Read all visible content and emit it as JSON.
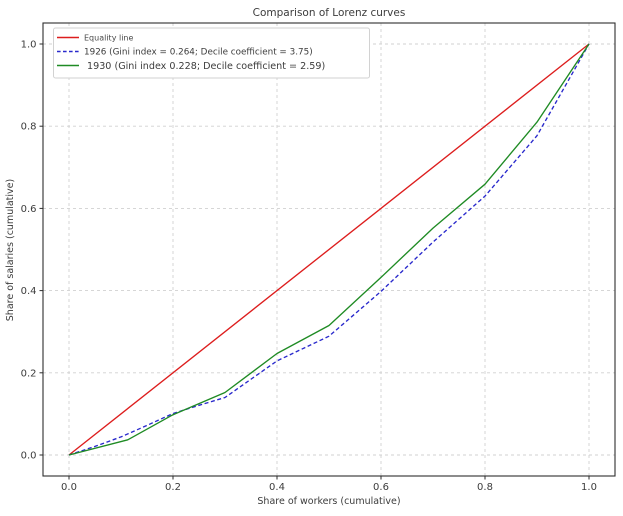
{
  "chart_data": {
    "type": "line",
    "title": "Comparison of Lorenz curves",
    "xlabel": "Share of workers (cumulative)",
    "ylabel": "Share of salaries (cumulative)",
    "xlim": [
      0.0,
      1.0
    ],
    "ylim": [
      0.0,
      1.0
    ],
    "x_ticks": [
      "0.0",
      "0.2",
      "0.4",
      "0.6",
      "0.8",
      "1.0"
    ],
    "y_ticks": [
      "0.0",
      "0.2",
      "0.4",
      "0.6",
      "0.8",
      "1.0"
    ],
    "x_tick_values": [
      0.0,
      0.2,
      0.4,
      0.6,
      0.8,
      1.0
    ],
    "y_tick_values": [
      0.0,
      0.2,
      0.4,
      0.6,
      0.8,
      1.0
    ],
    "grid": {
      "visible": true,
      "style": "dashed",
      "color": "#d0d0d0"
    },
    "legend": {
      "position": "upper-left",
      "background": "#ffffff",
      "border_color": "#d2d2d2"
    },
    "axis_color": "#2e2e2e",
    "text_color": "#3c3c3c",
    "series": [
      {
        "name": "Equality line",
        "color": "#dd1d1d",
        "dash": "solid",
        "points": [
          [
            0,
            0
          ],
          [
            1,
            1
          ]
        ]
      },
      {
        "name": "1926 (Gini index = 0.264; Decile coefficient = 3.75)",
        "year": 1926,
        "gini_index": 0.264,
        "decile_coefficient": 3.75,
        "color": "#2929cc",
        "dash": "dashed",
        "points": [
          [
            0,
            0
          ],
          [
            0.05,
            0.021
          ],
          [
            0.1,
            0.044
          ],
          [
            0.15,
            0.072
          ],
          [
            0.2,
            0.101
          ],
          [
            0.25,
            0.121
          ],
          [
            0.3,
            0.14
          ],
          [
            0.4,
            0.229
          ],
          [
            0.5,
            0.289
          ],
          [
            0.6,
            0.398
          ],
          [
            0.7,
            0.518
          ],
          [
            0.8,
            0.63
          ],
          [
            0.9,
            0.777
          ],
          [
            1,
            1
          ]
        ]
      },
      {
        "name": "1930 (Gini index 0.228; Decile coefficient = 2.59)",
        "year": 1930,
        "gini_index": 0.228,
        "decile_coefficient": 2.59,
        "color": "#1f8b24",
        "dash": "solid",
        "points": [
          [
            0,
            0
          ],
          [
            0.113,
            0.037
          ],
          [
            0.2,
            0.098
          ],
          [
            0.3,
            0.152
          ],
          [
            0.4,
            0.247
          ],
          [
            0.5,
            0.315
          ],
          [
            0.6,
            0.432
          ],
          [
            0.7,
            0.552
          ],
          [
            0.8,
            0.659
          ],
          [
            0.9,
            0.81
          ],
          [
            1,
            1
          ]
        ]
      }
    ]
  }
}
